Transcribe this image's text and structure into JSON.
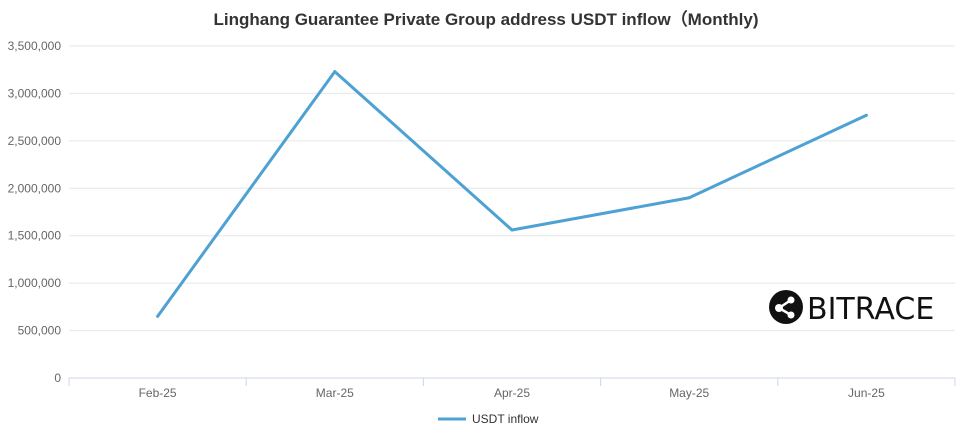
{
  "chart_data": {
    "type": "line",
    "title": "Linghang Guarantee Private Group address USDT inflow（Monthly)",
    "xlabel": "",
    "ylabel": "",
    "categories": [
      "Feb-25",
      "Mar-25",
      "Apr-25",
      "May-25",
      "Jun-25"
    ],
    "series": [
      {
        "name": "USDT inflow",
        "values": [
          650000,
          3230000,
          1560000,
          1900000,
          2770000
        ],
        "color": "#4ea1d3"
      }
    ],
    "ylim": [
      0,
      3500000
    ],
    "yticks": [
      "0",
      "500,000",
      "1,000,000",
      "1,500,000",
      "2,000,000",
      "2,500,000",
      "3,000,000",
      "3,500,000"
    ],
    "grid": true,
    "legend": "bottom-center"
  },
  "watermark": {
    "text": "BITRACE",
    "icon": "bitrace-logo-icon"
  }
}
